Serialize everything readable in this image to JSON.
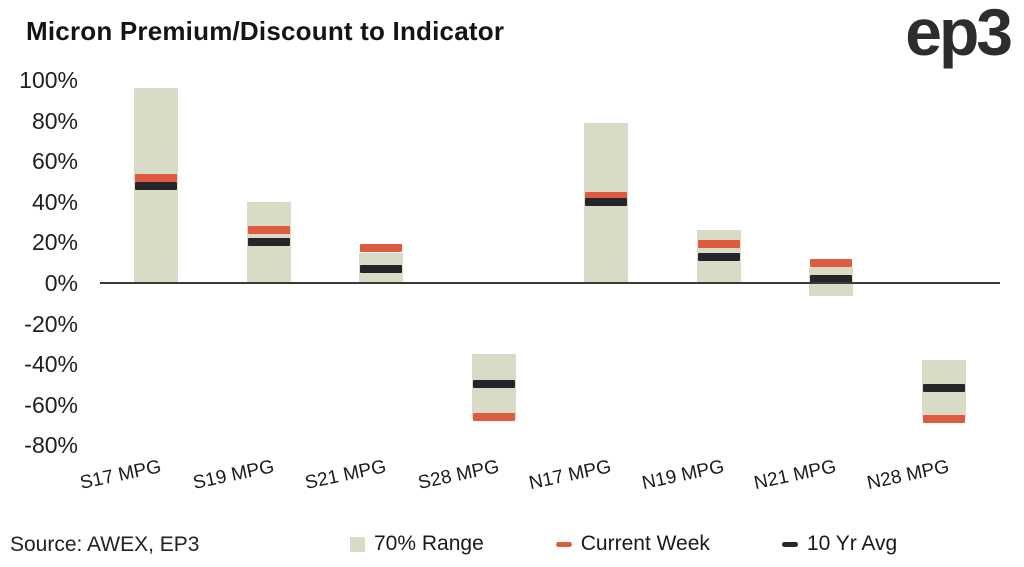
{
  "header": {
    "logo": "ep3"
  },
  "source": {
    "text": "Source: AWEX, EP3"
  },
  "chart_data": {
    "type": "bar",
    "subtype": "floating-range-bar-with-markers",
    "title": "Micron Premium/Discount to Indicator",
    "categories": [
      "S17  MPG",
      "S19  MPG",
      "S21  MPG",
      "S28 MPG",
      "N17 MPG",
      "N19 MPG",
      "N21 MPG",
      "N28 MPG"
    ],
    "series": [
      {
        "name": "70% Range",
        "kind": "range",
        "high": [
          96,
          40,
          15,
          -35,
          79,
          26,
          8,
          -38
        ],
        "low": [
          0,
          0,
          0,
          -67,
          0,
          0,
          -6.5,
          -66
        ],
        "color": "#d9dbc6"
      },
      {
        "name": "Current Week",
        "kind": "marker",
        "values": [
          52,
          26,
          17.5,
          -66,
          43,
          19,
          10,
          -67
        ],
        "color": "#dd5b3e"
      },
      {
        "name": "10 Yr Avg",
        "kind": "marker",
        "values": [
          48,
          20,
          7,
          -50,
          40,
          13,
          2,
          -52
        ],
        "color": "#25262a"
      }
    ],
    "ylabel": "",
    "xlabel": "",
    "ylim": [
      -80,
      100
    ],
    "y_tick_step": 20,
    "y_tick_labels": [
      "100%",
      "80%",
      "60%",
      "40%",
      "20%",
      "0%",
      "-20%",
      "-40%",
      "-60%",
      "-80%"
    ],
    "grid": false,
    "legend_position": "bottom",
    "axis_color": "#3a3a3a",
    "text_color": "#1a1a1a"
  }
}
